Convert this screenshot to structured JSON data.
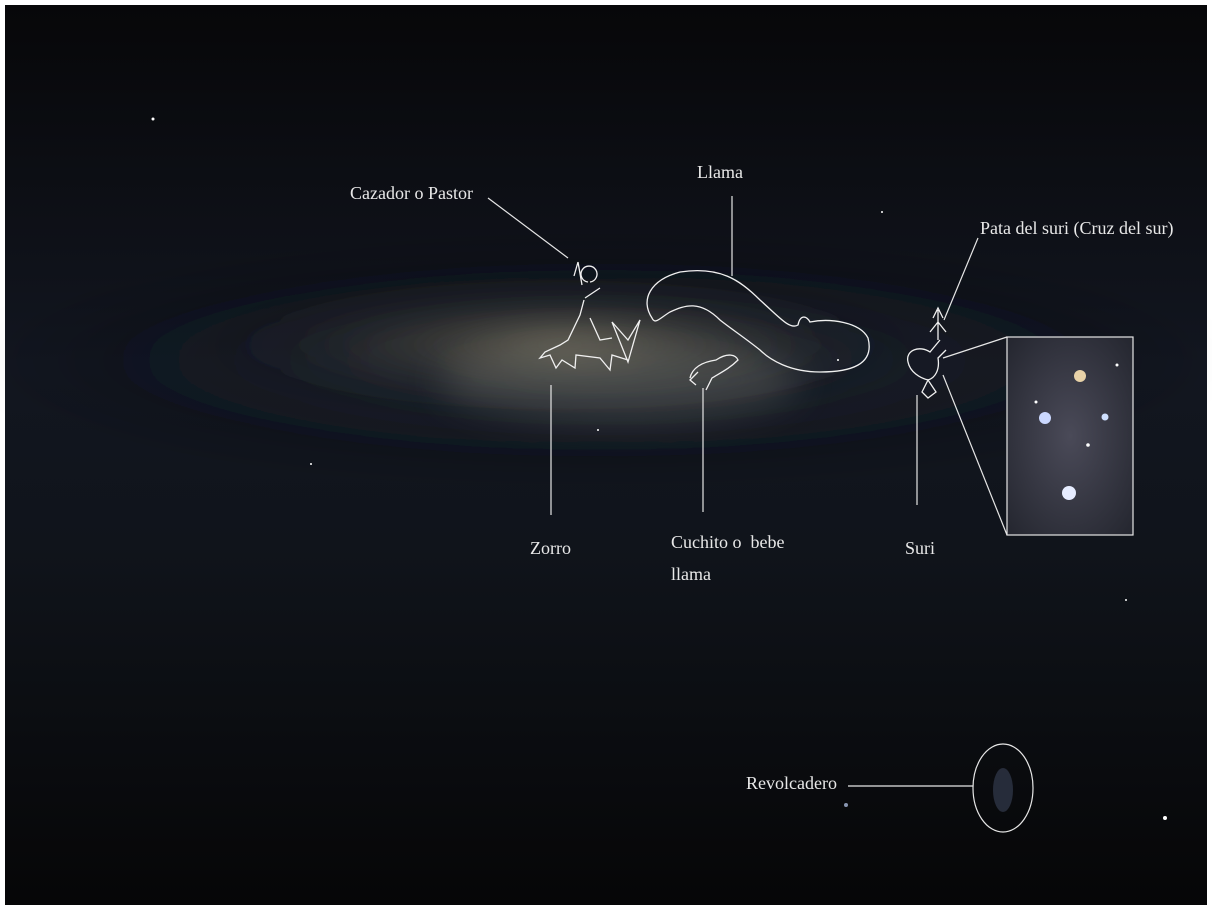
{
  "labels": {
    "cazador": "Cazador o Pastor",
    "llama": "Llama",
    "pata_suri": "Pata del suri (Cruz del sur)",
    "zorro": "Zorro",
    "cuchito": [
      "Cuchito o  bebe",
      "llama"
    ],
    "suri": "Suri",
    "revolcadero": "Revolcadero"
  }
}
